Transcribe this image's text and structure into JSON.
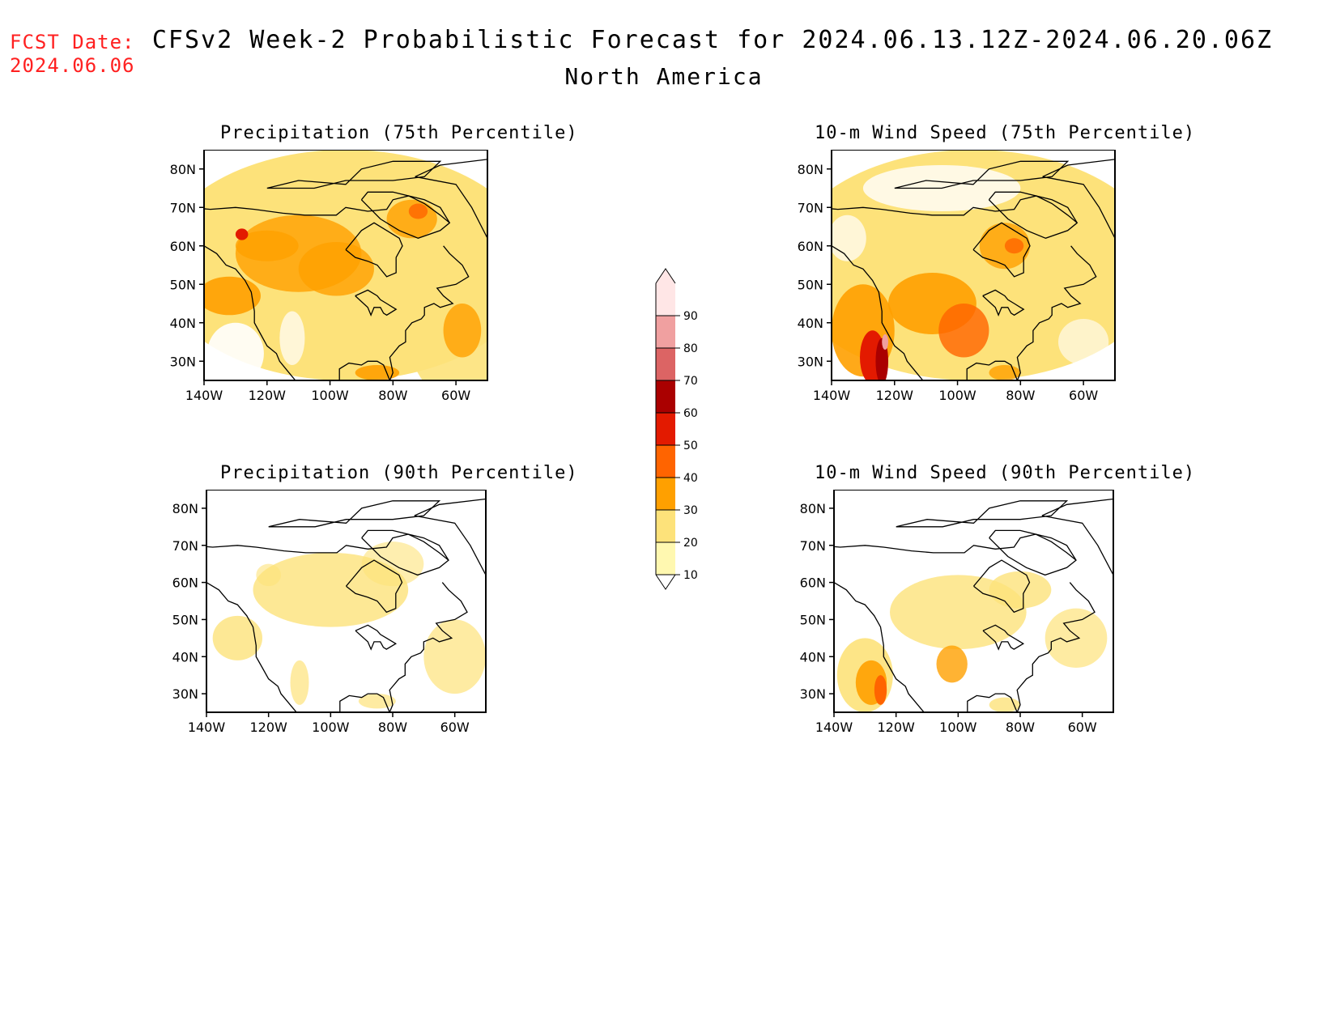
{
  "header": {
    "fcst_label": "FCST Date:",
    "fcst_date": "2024.06.06",
    "title": "CFSv2 Week-2 Probabilistic Forecast for 2024.06.13.12Z-2024.06.20.06Z",
    "region": "North America"
  },
  "panels": [
    {
      "title": "Precipitation (75th Percentile)",
      "field": "precip75"
    },
    {
      "title": "10-m Wind Speed (75th Percentile)",
      "field": "wind75"
    },
    {
      "title": "Precipitation (90th Percentile)",
      "field": "precip90"
    },
    {
      "title": "10-m Wind Speed (90th Percentile)",
      "field": "wind90"
    }
  ],
  "axes": {
    "lon_labels": [
      "140W",
      "120W",
      "100W",
      "80W",
      "60W"
    ],
    "lat_labels": [
      "80N",
      "70N",
      "60N",
      "50N",
      "40N",
      "30N"
    ],
    "lon_values": [
      -140,
      -120,
      -100,
      -80,
      -60
    ],
    "lat_values": [
      80,
      70,
      60,
      50,
      40,
      30
    ],
    "lon_range": [
      -140,
      -50
    ],
    "lat_range": [
      25,
      85
    ]
  },
  "colorbar": {
    "levels": [
      "10",
      "20",
      "30",
      "40",
      "50",
      "60",
      "70",
      "80",
      "90"
    ],
    "colors": [
      "#fff8b0",
      "#fde27a",
      "#ffa000",
      "#ff6400",
      "#e31a00",
      "#aa0000",
      "#dc6464",
      "#f0a0a0",
      "#ffe6e6"
    ]
  }
}
